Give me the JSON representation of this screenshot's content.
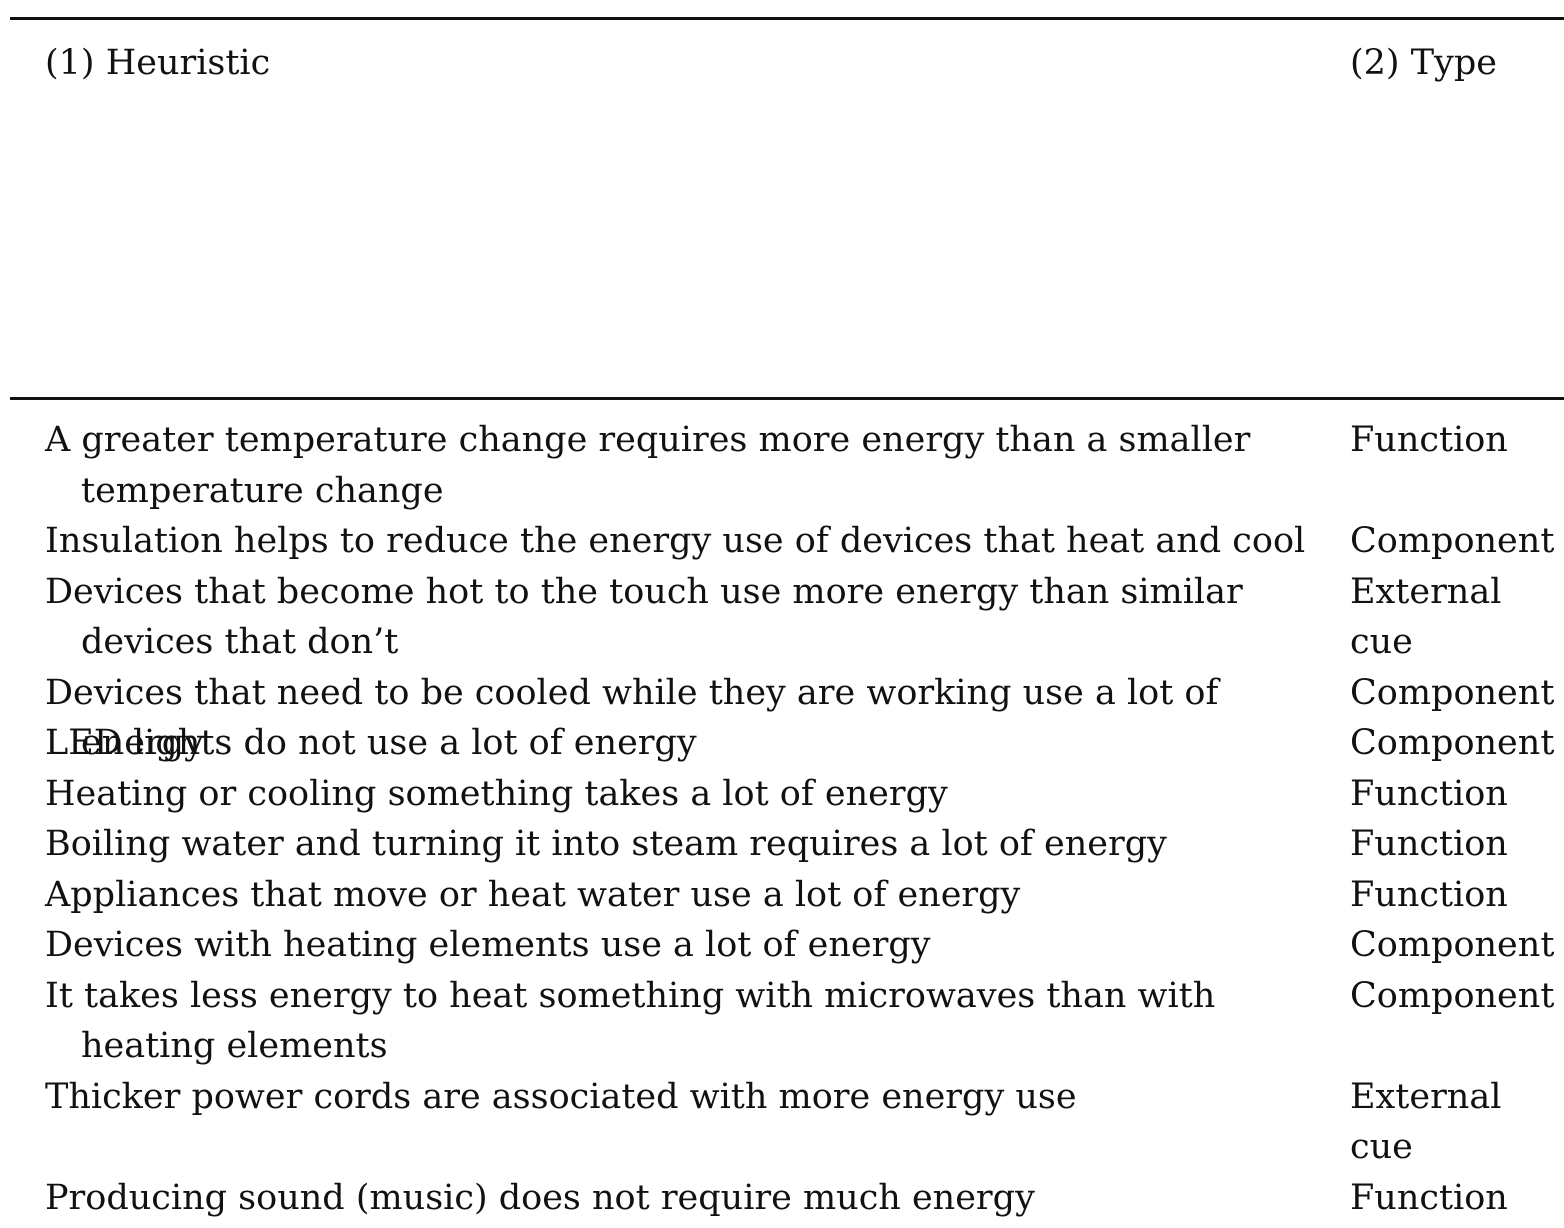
{
  "table": {
    "header": {
      "col1": "(1) Heuristic",
      "col2": "(2) Type"
    },
    "rows": [
      {
        "heuristic": "A greater temperature change requires more energy than a smaller temperature change",
        "type": "Function",
        "lines": 2
      },
      {
        "heuristic": "Insulation helps to reduce the energy use of devices that heat and cool",
        "type": "Component",
        "lines": 1
      },
      {
        "heuristic": "Devices that become hot to the touch use more energy than similar devices that don’t",
        "type": "External cue",
        "lines": 2
      },
      {
        "heuristic": "Devices that need to be cooled while they are working use a lot of energy",
        "type": "Component",
        "lines": 1
      },
      {
        "heuristic": "LED lights do not use a lot of energy",
        "type": "Component",
        "lines": 1
      },
      {
        "heuristic": "Heating or cooling something takes a lot of energy",
        "type": "Function",
        "lines": 1
      },
      {
        "heuristic": "Boiling water and turning it into steam requires a lot of energy",
        "type": "Function",
        "lines": 1
      },
      {
        "heuristic": "Appliances that move or heat water use a lot of energy",
        "type": "Function",
        "lines": 1
      },
      {
        "heuristic": "Devices with heating elements use a lot of energy",
        "type": "Component",
        "lines": 1
      },
      {
        "heuristic": "It takes less energy to heat something with microwaves than with heating elements",
        "type": "Component",
        "lines": 2
      },
      {
        "heuristic": "Thicker power cords are associated with more energy use",
        "type": "External cue",
        "lines": 2
      },
      {
        "heuristic": "Producing sound (music) does not require much energy",
        "type": "Function",
        "lines": 1
      }
    ]
  }
}
